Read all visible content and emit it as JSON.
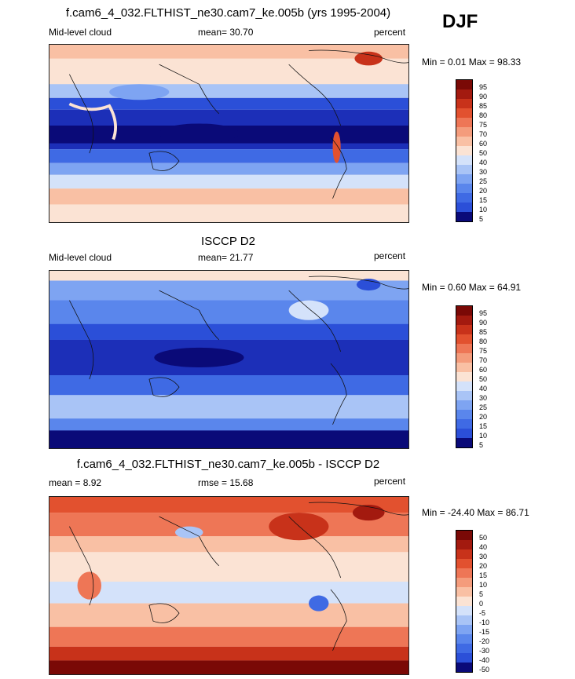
{
  "season": "DJF",
  "panels": [
    {
      "id": "model",
      "title": "f.cam6_4_032.FLTHIST_ne30.cam7_ke.005b (yrs 1995-2004)",
      "left_label": "Mid-level cloud",
      "center_label": "mean=  30.70",
      "right_label": "percent",
      "minmax": "Min =   0.01 Max =  98.33"
    },
    {
      "id": "obs",
      "title": "ISCCP D2",
      "left_label": "Mid-level cloud",
      "center_label": "mean=  21.77",
      "right_label": "percent",
      "minmax": "Min =   0.60 Max =  64.91"
    },
    {
      "id": "diff",
      "title": "f.cam6_4_032.FLTHIST_ne30.cam7_ke.005b - ISCCP D2",
      "left_label": "mean =   8.92",
      "center_label": "rmse =  15.68",
      "right_label": "percent",
      "minmax": "Min = -24.40 Max =  86.71"
    }
  ],
  "chart_data": [
    {
      "type": "heatmap",
      "title": "f.cam6_4_032.FLTHIST_ne30.cam7_ke.005b (yrs 1995-2004)",
      "variable": "Mid-level cloud",
      "units": "percent",
      "mean": 30.7,
      "min": 0.01,
      "max": 98.33,
      "colorbar_levels": [
        5,
        10,
        15,
        20,
        25,
        30,
        40,
        50,
        60,
        70,
        75,
        80,
        85,
        90,
        95
      ]
    },
    {
      "type": "heatmap",
      "title": "ISCCP D2",
      "variable": "Mid-level cloud",
      "units": "percent",
      "mean": 21.77,
      "min": 0.6,
      "max": 64.91,
      "colorbar_levels": [
        5,
        10,
        15,
        20,
        25,
        30,
        40,
        50,
        60,
        70,
        75,
        80,
        85,
        90,
        95
      ]
    },
    {
      "type": "heatmap",
      "title": "f.cam6_4_032.FLTHIST_ne30.cam7_ke.005b - ISCCP D2",
      "units": "percent",
      "mean": 8.92,
      "rmse": 15.68,
      "min": -24.4,
      "max": 86.71,
      "colorbar_levels": [
        -50,
        -40,
        -30,
        -20,
        -15,
        -10,
        -5,
        0,
        5,
        10,
        15,
        20,
        30,
        40,
        50
      ]
    }
  ],
  "colors": [
    "#0a0a78",
    "#1c2fb8",
    "#2b4fd8",
    "#3f6ae4",
    "#5a86ec",
    "#7ea4f2",
    "#a9c4f6",
    "#d4e2fa",
    "#fbe3d4",
    "#f9c0a4",
    "#f49c7c",
    "#ee7656",
    "#e2512f",
    "#c8321a",
    "#a31a0f",
    "#7a0906"
  ]
}
